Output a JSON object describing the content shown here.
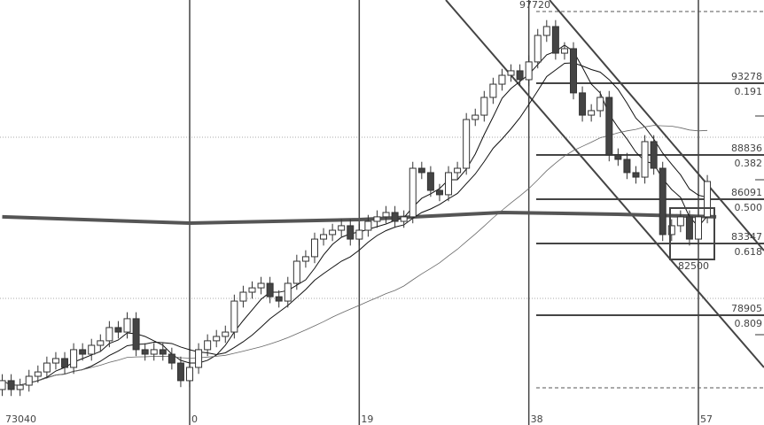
{
  "chart_data": {
    "type": "candlestick",
    "x_ticks": [
      {
        "index": 0,
        "label": "0"
      },
      {
        "index": 19,
        "label": "19"
      },
      {
        "index": 38,
        "label": "38"
      },
      {
        "index": 57,
        "label": "57"
      }
    ],
    "first_index": -21,
    "first_open": 74300,
    "close": [
      74850,
      74300,
      74570,
      75120,
      75390,
      75940,
      76220,
      75670,
      76770,
      76490,
      77040,
      77320,
      78140,
      77860,
      78690,
      76770,
      76490,
      76770,
      76490,
      75940,
      74850,
      75670,
      76770,
      77320,
      77590,
      77860,
      79780,
      80330,
      80600,
      80880,
      80050,
      79780,
      80880,
      82250,
      82530,
      83620,
      83900,
      84170,
      84450,
      83620,
      84170,
      84720,
      85000,
      85270,
      84720,
      85000,
      88010,
      87740,
      86640,
      86370,
      87740,
      88010,
      91030,
      91300,
      92400,
      93220,
      93770,
      94050,
      93500,
      94600,
      96240,
      96790,
      95140,
      95420,
      92680,
      91300,
      91580,
      92400,
      88840,
      88560,
      87740,
      87460,
      89660,
      88010,
      83900,
      84450,
      85000,
      83620,
      85000,
      87190
    ],
    "long_ma": [
      [
        -21,
        85000
      ],
      [
        0,
        84610
      ],
      [
        19,
        84830
      ],
      [
        35,
        85270
      ],
      [
        48,
        85160
      ],
      [
        59,
        85000
      ]
    ],
    "moving_averages": [
      5,
      10,
      30
    ],
    "labels": {
      "high": "97720",
      "low_left": "73040",
      "box_low": "82500"
    },
    "high_value": 97720,
    "bottom_dashed_value": 74930,
    "fib_levels": [
      {
        "price": "93278",
        "ratio": "0.191",
        "value": 93278
      },
      {
        "price": "88836",
        "ratio": "0.382",
        "value": 88836
      },
      {
        "price": "86091",
        "ratio": "0.500",
        "value": 86091
      },
      {
        "price": "83347",
        "ratio": "0.618",
        "value": 83347
      },
      {
        "price": "78905",
        "ratio": "0.809",
        "value": 78905
      }
    ],
    "colors": {
      "up": "#ffffff",
      "down": "#444444",
      "line": "#333333"
    }
  }
}
